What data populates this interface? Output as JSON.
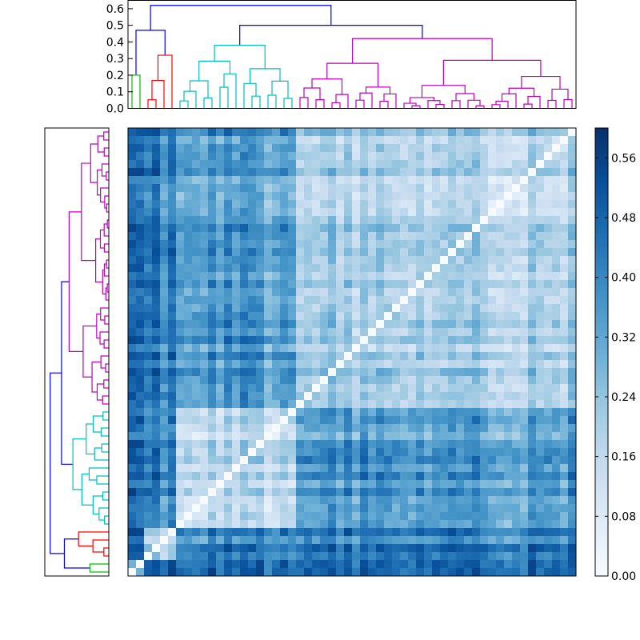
{
  "chart_data": [
    {
      "type": "dendrogram",
      "orientation": "top",
      "title": "",
      "xlabel": "",
      "ylabel": "",
      "ylim": [
        0,
        0.65
      ],
      "yticks": [
        "0.0",
        "0.1",
        "0.2",
        "0.3",
        "0.4",
        "0.5",
        "0.6"
      ],
      "leaf_count": 56,
      "clusters": [
        {
          "color": "#00bf00",
          "leaves": 2,
          "max_height": 0.2
        },
        {
          "color": "#ff0000",
          "leaves": 4,
          "max_height": 0.32
        },
        {
          "color": "#00bfbf",
          "leaves": 15,
          "max_height": 0.38
        },
        {
          "color": "#bf00bf",
          "leaves": 35,
          "max_height": 0.42
        }
      ],
      "link_color": "#0000ff",
      "top_merges": [
        0.47,
        0.5,
        0.62
      ]
    },
    {
      "type": "dendrogram",
      "orientation": "left",
      "title": "",
      "xlabel": "",
      "ylabel": "",
      "leaf_count": 56,
      "clusters": [
        {
          "color": "#00bf00",
          "leaves": 2
        },
        {
          "color": "#ff0000",
          "leaves": 4
        },
        {
          "color": "#00bfbf",
          "leaves": 15
        },
        {
          "color": "#bf00bf",
          "leaves": 35
        }
      ],
      "link_color": "#0000ff"
    },
    {
      "type": "heatmap",
      "title": "",
      "xlabel": "",
      "ylabel": "",
      "size": 56,
      "colormap": "Blues",
      "vmin": 0.0,
      "vmax": 0.6,
      "diagonal": 0.0,
      "block_means": [
        [
          0.2,
          0.45,
          0.42,
          0.42
        ],
        [
          0.45,
          0.18,
          0.4,
          0.42
        ],
        [
          0.42,
          0.4,
          0.16,
          0.35
        ],
        [
          0.42,
          0.42,
          0.35,
          0.2
        ]
      ],
      "colorbar": {
        "ticks": [
          "0.00",
          "0.08",
          "0.16",
          "0.24",
          "0.32",
          "0.40",
          "0.48",
          "0.56"
        ]
      }
    }
  ]
}
